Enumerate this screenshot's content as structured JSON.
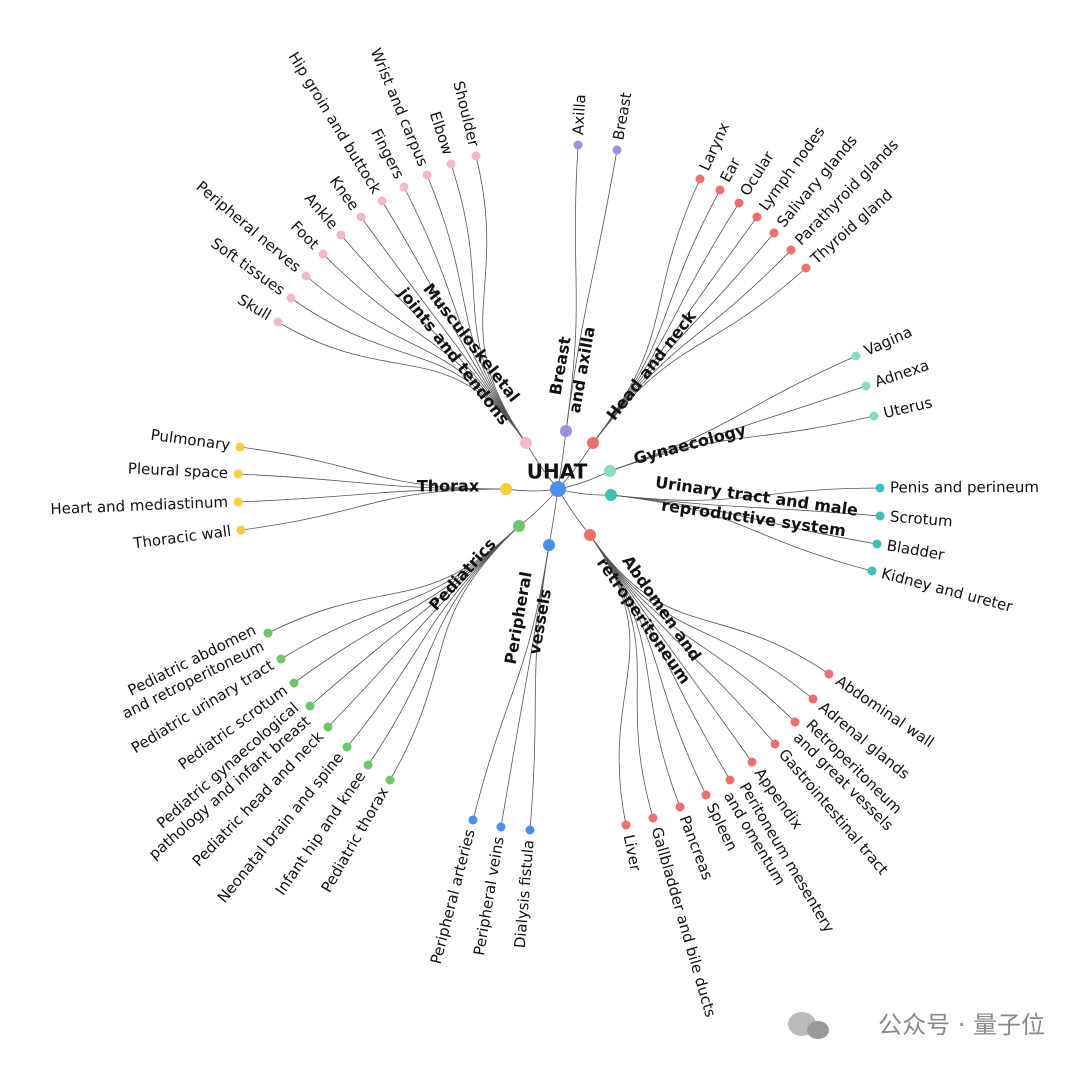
{
  "root": {
    "label": "UHAT",
    "color": "#4a8ff0"
  },
  "categories": [
    {
      "label": [
        "Musculoskeletal",
        "joints and tendons"
      ],
      "color": "#f5b8cb",
      "leaves": [
        "Shoulder",
        "Elbow",
        "Wrist and carpus",
        "Fingers",
        "Hip groin and buttock",
        "Knee",
        "Ankle",
        "Foot",
        "Peripheral nerves",
        "Soft tissues",
        "Skull"
      ]
    },
    {
      "label": [
        "Breast",
        "and axilla"
      ],
      "color": "#9d8fd8",
      "leaves": [
        "Axilla",
        "Breast"
      ]
    },
    {
      "label": [
        "Head and neck"
      ],
      "color": "#ef6f6c",
      "leaves": [
        "Larynx",
        "Ear",
        "Ocular",
        "Lymph nodes",
        "Salivary glands",
        "Parathyroid glands",
        "Thyroid gland"
      ]
    },
    {
      "label": [
        "Gynaecology"
      ],
      "color": "#86dcc6",
      "leaves": [
        "Vagina",
        "Adnexa",
        "Uterus"
      ]
    },
    {
      "label": [
        "Urinary tract and male",
        "reproductive system"
      ],
      "color": "#3fc1b5",
      "leaves": [
        "Penis and perineum",
        "Scrotum",
        "Bladder",
        "Kidney and ureter"
      ]
    },
    {
      "label": [
        "Abdomen and",
        "retroperitoneum"
      ],
      "color": "#ef6f6c",
      "leaves": [
        "Abdominal wall",
        "Adrenal glands",
        [
          "Retroperitoneum",
          "and great vessels"
        ],
        "Gastrointestinal tract",
        "Appendix",
        [
          "Peritoneum mesentery",
          "and omentum"
        ],
        "Spleen",
        "Pancreas",
        "Gallbladder and bile ducts",
        "Liver"
      ]
    },
    {
      "label": [
        "Peripheral",
        "vessels"
      ],
      "color": "#4a8ff0",
      "leaves": [
        "Peripheral arteries",
        "Peripheral veins",
        "Dialysis fistula"
      ]
    },
    {
      "label": [
        "Pediatrics"
      ],
      "color": "#6cc76b",
      "leaves": [
        [
          "Pediatric abdomen",
          "and retroperitoneum"
        ],
        "Pediatric urinary tract",
        "Pediatric scrotum",
        [
          "Pediatric gynaecological",
          "pathology and infant breast"
        ],
        "Pediatric head and neck",
        "Neonatal brain and spine",
        "Infant hip and knee",
        "Pediatric thorax"
      ]
    },
    {
      "label": [
        "Thorax"
      ],
      "color": "#f6cf3a",
      "leaves": [
        "Pulmonary",
        "Pleural space",
        "Heart and mediastinum",
        "Thoracic wall"
      ]
    }
  ],
  "watermark": "公众号 · 量子位"
}
